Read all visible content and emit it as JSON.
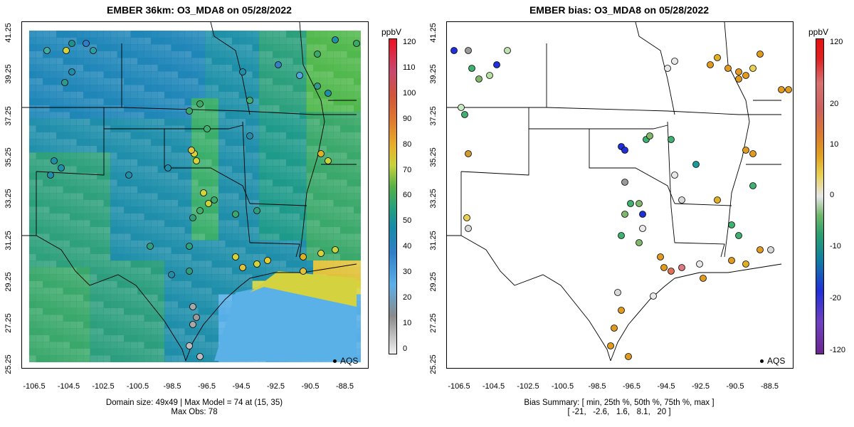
{
  "left": {
    "title": "EMBER 36km: O3_MDA8 on 05/28/2022",
    "caption_line1": "Domain size: 49x49 | Max Model = 74 at (15, 35)",
    "caption_line2": "Max Obs: 78",
    "colorbar_unit": "ppbV",
    "colorbar_ticks": [
      "120",
      "110",
      "100",
      "90",
      "80",
      "70",
      "60",
      "50",
      "40",
      "30",
      "20",
      "10",
      "0"
    ],
    "legend_label": "AQS"
  },
  "right": {
    "title": "EMBER bias: O3_MDA8 on 05/28/2022",
    "caption_line1": "Bias Summary: [ min, 25th %, 50th %, 75th %, max ]",
    "caption_line2": "[ -21,   -2.6,   1.6,   8.1,   20 ]",
    "colorbar_unit": "ppbV",
    "colorbar_ticks": [
      "120",
      "20",
      "10",
      "0",
      "-10",
      "-20",
      "-120"
    ],
    "legend_label": "AQS"
  },
  "x_ticks": [
    "-106.5",
    "-104.5",
    "-102.5",
    "-100.5",
    "-98.5",
    "-96.5",
    "-94.5",
    "-92.5",
    "-90.5",
    "-88.5"
  ],
  "y_ticks": [
    "41.25",
    "39.25",
    "37.25",
    "35.25",
    "33.25",
    "31.25",
    "29.25",
    "27.25",
    "25.25"
  ],
  "colors": {
    "ozone_scale": [
      "#e0e0e0",
      "#9a9a9a",
      "#4fa8e0",
      "#2f7fc8",
      "#1a8cb0",
      "#1b9c8c",
      "#3faa5a",
      "#7bc04a",
      "#d8d535",
      "#e9a52b",
      "#dd6a3a",
      "#d04060",
      "#e01020"
    ],
    "bias_scale": [
      "#7a2a9a",
      "#1a2ae0",
      "#1a9a9a",
      "#3fb070",
      "#e8e8e8",
      "#e8d040",
      "#e09a20",
      "#d87a80",
      "#e01020"
    ]
  }
}
